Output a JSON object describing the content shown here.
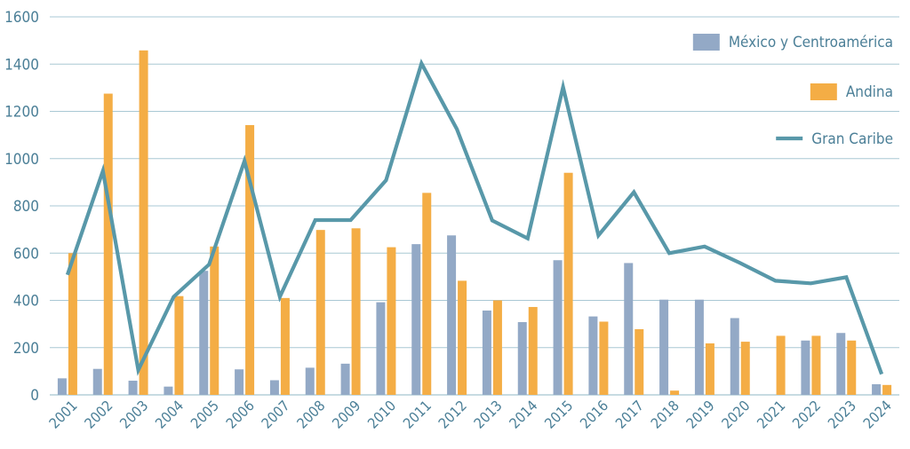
{
  "chart_data": {
    "type": "bar",
    "categories": [
      "2001",
      "2002",
      "2003",
      "2004",
      "2005",
      "2006",
      "2007",
      "2008",
      "2009",
      "2010",
      "2011",
      "2012",
      "2013",
      "2014",
      "2015",
      "2016",
      "2017",
      "2018",
      "2019",
      "2020",
      "2021",
      "2022",
      "2023",
      "2024"
    ],
    "series": [
      {
        "name": "México y Centroamérica",
        "kind": "bar",
        "color": "#93a9c6",
        "values": [
          70,
          110,
          60,
          35,
          525,
          108,
          62,
          115,
          132,
          392,
          638,
          675,
          357,
          308,
          570,
          332,
          558,
          403,
          403,
          325,
          0,
          230,
          262,
          45
        ]
      },
      {
        "name": "Andina",
        "kind": "bar",
        "color": "#f4ad45",
        "values": [
          600,
          1275,
          1458,
          418,
          628,
          1142,
          410,
          698,
          705,
          625,
          855,
          483,
          400,
          372,
          940,
          310,
          278,
          18,
          218,
          225,
          250,
          250,
          230,
          42
        ]
      },
      {
        "name": "Gran Caribe",
        "kind": "line",
        "color": "#5898a9",
        "values": [
          508,
          948,
          105,
          415,
          552,
          990,
          415,
          740,
          740,
          908,
          1403,
          1125,
          738,
          662,
          1303,
          675,
          858,
          600,
          628,
          558,
          483,
          472,
          498,
          88
        ]
      }
    ],
    "ylim": [
      0,
      1600
    ],
    "yticks": [
      "0",
      "200",
      "400",
      "600",
      "800",
      "1000",
      "1200",
      "1400",
      "1600"
    ],
    "grid": true,
    "legend_position": "right",
    "title": "",
    "xlabel": "",
    "ylabel": ""
  }
}
